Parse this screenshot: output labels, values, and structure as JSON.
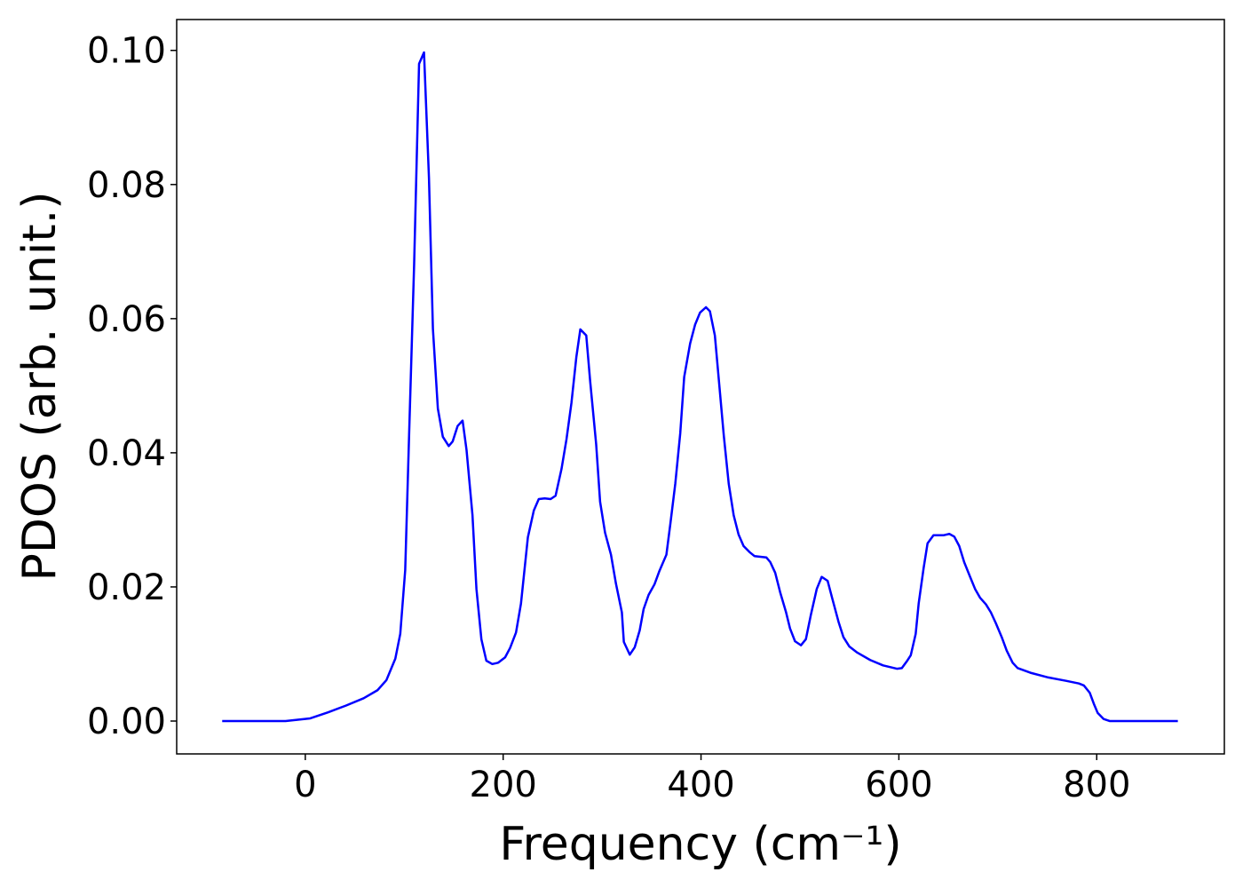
{
  "chart_data": {
    "type": "line",
    "x_label": "Frequency (cm⁻¹)",
    "y_label": "PDOS (arb. unit.)",
    "color": "#0000ff",
    "x": [
      -84,
      -20,
      5,
      23,
      41,
      59,
      73,
      82,
      91,
      96,
      101,
      105,
      110,
      115,
      120,
      125,
      129,
      134,
      139,
      145,
      149,
      154,
      159,
      163,
      169,
      173,
      178,
      183,
      189,
      195,
      202,
      207,
      213,
      218,
      225,
      231,
      236,
      242,
      248,
      253,
      259,
      264,
      269,
      274,
      278,
      284,
      288,
      294,
      298,
      303,
      309,
      314,
      320,
      322,
      328,
      333,
      338,
      342,
      347,
      353,
      358,
      365,
      369,
      374,
      379,
      383,
      389,
      394,
      399,
      405,
      409,
      414,
      418,
      423,
      428,
      433,
      438,
      443,
      449,
      454,
      460,
      466,
      470,
      475,
      480,
      486,
      490,
      495,
      501,
      506,
      511,
      517,
      522,
      528,
      533,
      539,
      544,
      550,
      558,
      571,
      584,
      598,
      603,
      608,
      612,
      617,
      620,
      625,
      629,
      635,
      640,
      645,
      651,
      656,
      661,
      666,
      672,
      677,
      682,
      688,
      693,
      698,
      704,
      709,
      715,
      720,
      733,
      751,
      769,
      782,
      787,
      793,
      797,
      801,
      807,
      813,
      831,
      882
    ],
    "values": [
      0,
      0,
      0.0004,
      0.0013,
      0.0023,
      0.0034,
      0.0046,
      0.0061,
      0.0093,
      0.013,
      0.0225,
      0.043,
      0.068,
      0.098,
      0.0997,
      0.081,
      0.0585,
      0.0466,
      0.0424,
      0.041,
      0.0417,
      0.044,
      0.0448,
      0.0404,
      0.0307,
      0.0197,
      0.0122,
      0.009,
      0.0085,
      0.0087,
      0.0095,
      0.0109,
      0.0132,
      0.0175,
      0.0274,
      0.0314,
      0.0331,
      0.0332,
      0.0331,
      0.0336,
      0.0376,
      0.042,
      0.0474,
      0.0543,
      0.0584,
      0.0575,
      0.0506,
      0.0413,
      0.0327,
      0.0281,
      0.0248,
      0.0205,
      0.0162,
      0.0118,
      0.0099,
      0.011,
      0.0135,
      0.0167,
      0.0188,
      0.0204,
      0.0224,
      0.0248,
      0.0294,
      0.0354,
      0.0429,
      0.0513,
      0.0563,
      0.0591,
      0.0609,
      0.0617,
      0.0611,
      0.0575,
      0.0509,
      0.0426,
      0.0354,
      0.0307,
      0.0278,
      0.0261,
      0.0252,
      0.0246,
      0.0245,
      0.0244,
      0.0237,
      0.0221,
      0.0192,
      0.0162,
      0.0138,
      0.0119,
      0.0113,
      0.0122,
      0.0158,
      0.0197,
      0.0215,
      0.0209,
      0.0181,
      0.0148,
      0.0125,
      0.0111,
      0.0102,
      0.0091,
      0.0083,
      0.0078,
      0.0079,
      0.0089,
      0.0098,
      0.013,
      0.0175,
      0.0228,
      0.0265,
      0.0277,
      0.0277,
      0.0277,
      0.0279,
      0.0275,
      0.0261,
      0.0237,
      0.0215,
      0.0197,
      0.0184,
      0.0174,
      0.0162,
      0.0146,
      0.0125,
      0.0105,
      0.0087,
      0.0079,
      0.0072,
      0.0065,
      0.006,
      0.0056,
      0.0053,
      0.0042,
      0.0026,
      0.0012,
      0.0003,
      0,
      0,
      0
    ],
    "xlim": [
      -130,
      929
    ],
    "ylim": [
      -0.0049,
      0.1046
    ],
    "xticks": [
      0,
      200,
      400,
      600,
      800
    ],
    "yticks": [
      {
        "value": 0,
        "label": "0.00"
      },
      {
        "value": 0.02,
        "label": "0.02"
      },
      {
        "value": 0.04,
        "label": "0.04"
      },
      {
        "value": 0.06,
        "label": "0.06"
      },
      {
        "value": 0.08,
        "label": "0.08"
      },
      {
        "value": 0.1,
        "label": "0.10"
      }
    ]
  }
}
